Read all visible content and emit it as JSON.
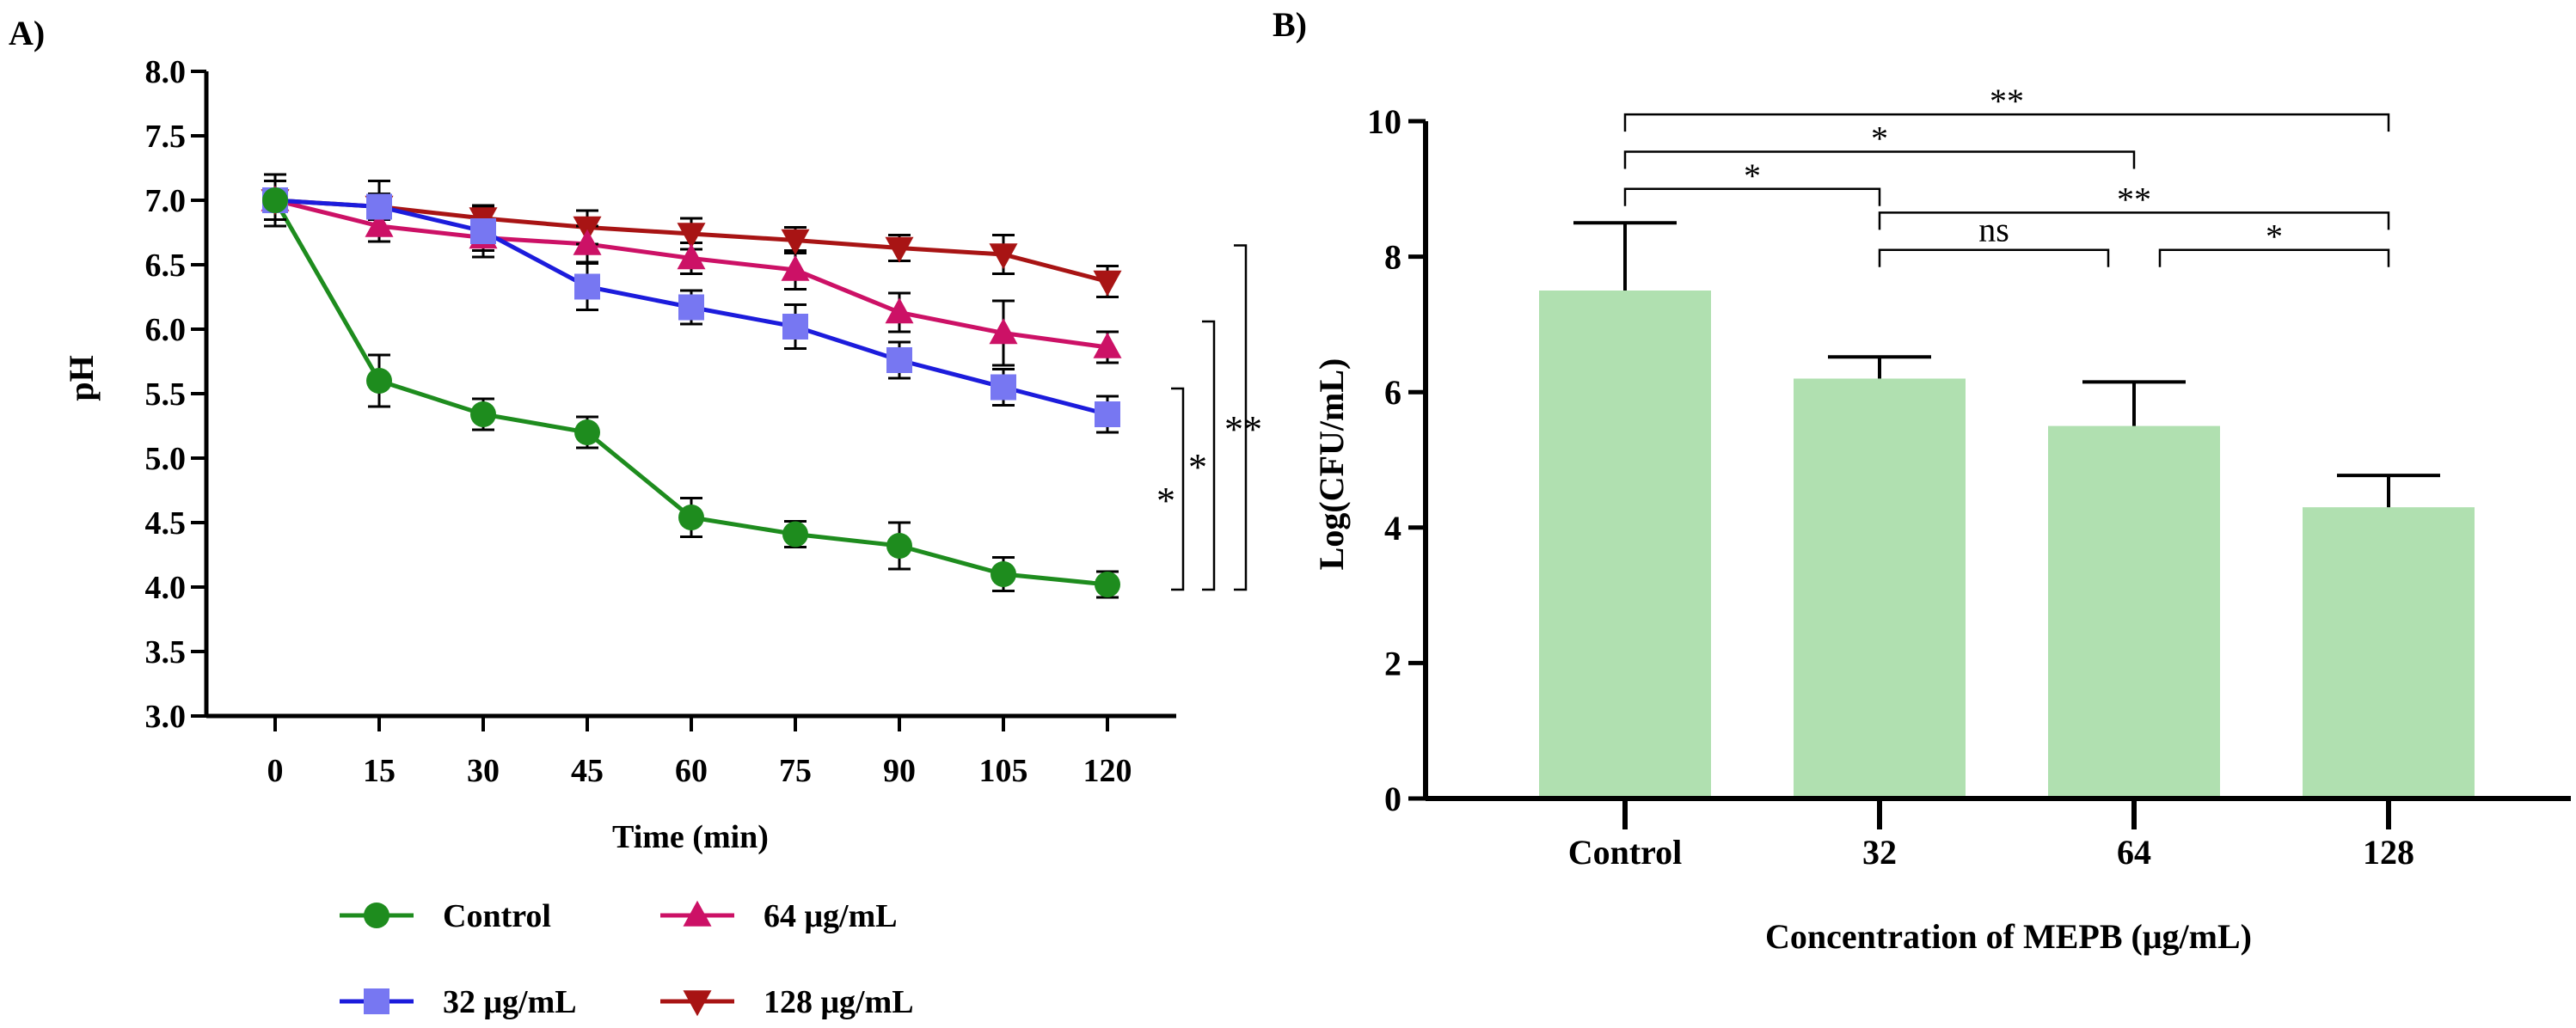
{
  "colors": {
    "control": "#1e8c1e",
    "mepb32": "#1c1cdc",
    "mepb32_marker": "#7777f2",
    "mepb64": "#cc1166",
    "mepb128": "#a81414",
    "bar_fill": "#b0e0b0",
    "axis": "#000000"
  },
  "chart_data": [
    {
      "panel_label": "A)",
      "type": "line",
      "xlabel": "Time (min)",
      "ylabel": "pH",
      "x": [
        0,
        15,
        30,
        45,
        60,
        75,
        90,
        105,
        120
      ],
      "x_tick_labels": [
        "0",
        "15",
        "30",
        "45",
        "60",
        "75",
        "90",
        "105",
        "120"
      ],
      "y_tick_labels": [
        "3.0",
        "3.5",
        "4.0",
        "4.5",
        "5.0",
        "5.5",
        "6.0",
        "6.5",
        "7.0",
        "7.5",
        "8.0"
      ],
      "ylim": [
        3.0,
        8.0
      ],
      "series": [
        {
          "name": "Control",
          "marker": "circle",
          "values": [
            7.0,
            5.6,
            5.34,
            5.2,
            4.54,
            4.41,
            4.32,
            4.1,
            4.02
          ],
          "errors": [
            0.2,
            0.2,
            0.12,
            0.12,
            0.15,
            0.1,
            0.18,
            0.13,
            0.1
          ]
        },
        {
          "name": "32 μg/mL",
          "marker": "square",
          "values": [
            7.0,
            6.95,
            6.76,
            6.33,
            6.17,
            6.02,
            5.76,
            5.55,
            5.34
          ],
          "errors": [
            0.15,
            0.2,
            0.2,
            0.18,
            0.13,
            0.17,
            0.14,
            0.14,
            0.14
          ]
        },
        {
          "name": "64 μg/mL",
          "marker": "triangle-up",
          "values": [
            7.0,
            6.8,
            6.71,
            6.66,
            6.55,
            6.46,
            6.13,
            5.97,
            5.86
          ],
          "errors": [
            0.15,
            0.12,
            0.1,
            0.14,
            0.12,
            0.15,
            0.15,
            0.25,
            0.12
          ]
        },
        {
          "name": "128 μg/mL",
          "marker": "triangle-down",
          "values": [
            7.0,
            6.95,
            6.86,
            6.79,
            6.74,
            6.69,
            6.63,
            6.58,
            6.37
          ],
          "errors": [
            0.15,
            0.1,
            0.08,
            0.13,
            0.12,
            0.1,
            0.1,
            0.15,
            0.12
          ]
        }
      ],
      "significance": [
        {
          "from": "Control",
          "to": "32 μg/mL",
          "label": "*"
        },
        {
          "from": "Control",
          "to": "64 μg/mL",
          "label": "*"
        },
        {
          "from": "Control",
          "to": "128 μg/mL",
          "label": "**"
        }
      ],
      "legend": [
        "Control",
        "64 μg/mL",
        "32 μg/mL",
        "128 μg/mL"
      ]
    },
    {
      "panel_label": "B)",
      "type": "bar",
      "xlabel": "Concentration of MEPB (μg/mL)",
      "ylabel": "Log(CFU/mL)",
      "categories": [
        "Control",
        "32",
        "64",
        "128"
      ],
      "values": [
        7.5,
        6.2,
        5.5,
        4.3
      ],
      "errors": [
        1.0,
        0.32,
        0.65,
        0.47
      ],
      "y_tick_labels": [
        "0",
        "2",
        "4",
        "6",
        "8",
        "10"
      ],
      "ylim": [
        0,
        10
      ],
      "significance": [
        {
          "from": 0,
          "to": 3,
          "label": "**",
          "y": 10.1
        },
        {
          "from": 0,
          "to": 2,
          "label": "*",
          "y": 9.55
        },
        {
          "from": 0,
          "to": 1,
          "label": "*",
          "y": 9.0
        },
        {
          "from": 1,
          "to": 3,
          "label": "**",
          "y": 8.65
        },
        {
          "from": 1,
          "to": 2,
          "label": "ns",
          "y": 8.1
        },
        {
          "from": 2,
          "to": 3,
          "label": "*",
          "y": 8.1
        }
      ]
    }
  ]
}
